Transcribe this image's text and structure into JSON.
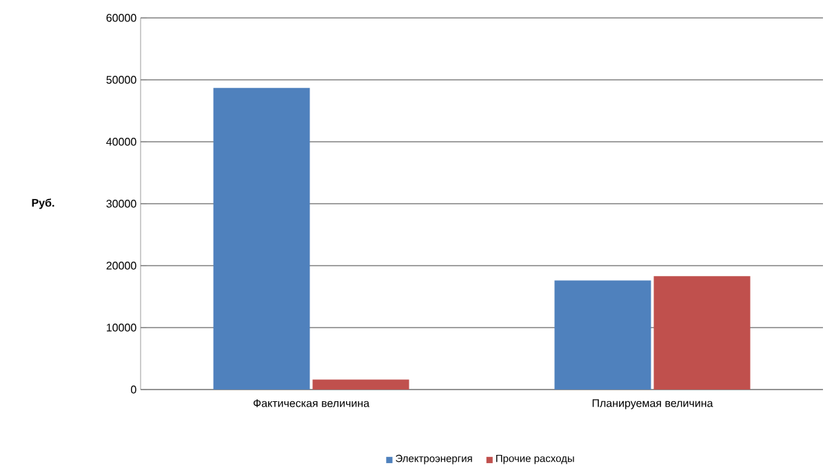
{
  "chart_data": {
    "type": "bar",
    "ylabel": "Руб.",
    "categories": [
      "Фактическая величина",
      "Планируемая величина"
    ],
    "series": [
      {
        "name": "Электроэнергия",
        "color": "#4f81bd",
        "values": [
          48700,
          17600
        ]
      },
      {
        "name": "Прочие расходы",
        "color": "#c0504d",
        "values": [
          1600,
          18300
        ]
      }
    ],
    "ylim": [
      0,
      60000
    ],
    "yticks": [
      0,
      10000,
      20000,
      30000,
      40000,
      50000,
      60000
    ],
    "grid": "y",
    "legend": "bottom"
  }
}
